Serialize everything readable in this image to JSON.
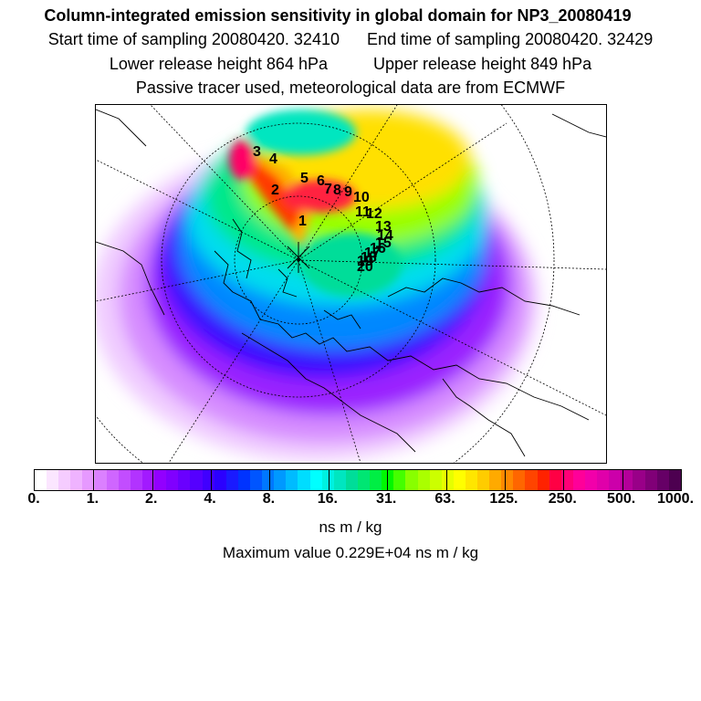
{
  "title": "Column-integrated emission sensitivity in global domain for NP3_20080419",
  "start_time": "Start time of sampling 20080420. 32410",
  "end_time": "End time of sampling 20080420. 32429",
  "lower_release": "Lower release height  864 hPa",
  "upper_release": "Upper release height  849 hPa",
  "tracer_note": "Passive tracer used, meteorological data are from ECMWF",
  "colorbar": {
    "colors": [
      "#ffffff",
      "#fbe6ff",
      "#f5ccff",
      "#efb3ff",
      "#e699ff",
      "#db80ff",
      "#cf66ff",
      "#c24dff",
      "#b233ff",
      "#a21aff",
      "#9200ff",
      "#8000ff",
      "#6a00ff",
      "#5500ff",
      "#4000ff",
      "#2b00ff",
      "#1a1aff",
      "#0033ff",
      "#0055ff",
      "#0077ff",
      "#0099ff",
      "#00bbff",
      "#00ddff",
      "#00ffff",
      "#00f2e0",
      "#00e6c0",
      "#00dd99",
      "#00e673",
      "#00ee44",
      "#00f700",
      "#44ff00",
      "#88ff00",
      "#aaff00",
      "#ccff00",
      "#e6ff00",
      "#ffff00",
      "#ffe600",
      "#ffcc00",
      "#ffaa00",
      "#ff8800",
      "#ff6600",
      "#ff4400",
      "#ff2200",
      "#ff0044",
      "#ff0077",
      "#ff0099",
      "#f200aa",
      "#e000aa",
      "#cc00aa",
      "#b30099",
      "#990088",
      "#800077",
      "#660066",
      "#4d0050"
    ],
    "ticks": [
      "0.",
      "1.",
      "2.",
      "4.",
      "8.",
      "16.",
      "31.",
      "63.",
      "125.",
      "250.",
      "500.",
      "1000."
    ]
  },
  "unit": "ns m / kg",
  "max_value": "Maximum value  0.229E+04 ns m / kg",
  "trajectory_labels": [
    "1",
    "2",
    "3",
    "4",
    "5",
    "6",
    "7",
    "8",
    "9",
    "10",
    "11",
    "12",
    "13",
    "14",
    "15",
    "16",
    "17",
    "18",
    "19",
    "20"
  ]
}
